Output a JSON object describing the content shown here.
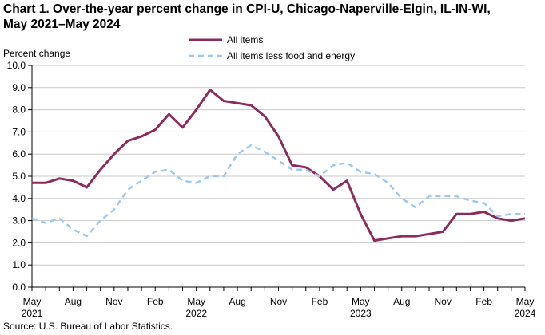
{
  "chart_data": {
    "type": "line",
    "title_line1": "Chart 1. Over-the-year percent change in CPI-U, Chicago-Naperville-Elgin,  IL-IN-WI,",
    "title_line2": "May 2021–May 2024",
    "ylabel": "Percent change",
    "ylim": [
      0,
      10
    ],
    "yticks": [
      "0.0",
      "1.0",
      "2.0",
      "3.0",
      "4.0",
      "5.0",
      "6.0",
      "7.0",
      "8.0",
      "9.0",
      "10.0"
    ],
    "x_ticks": [
      {
        "label": "May",
        "sub": "2021"
      },
      {
        "label": "Aug",
        "sub": ""
      },
      {
        "label": "Nov",
        "sub": ""
      },
      {
        "label": "Feb",
        "sub": ""
      },
      {
        "label": "May",
        "sub": "2022"
      },
      {
        "label": "Aug",
        "sub": ""
      },
      {
        "label": "Nov",
        "sub": ""
      },
      {
        "label": "Feb",
        "sub": ""
      },
      {
        "label": "May",
        "sub": "2023"
      },
      {
        "label": "Aug",
        "sub": ""
      },
      {
        "label": "Nov",
        "sub": ""
      },
      {
        "label": "Feb",
        "sub": ""
      },
      {
        "label": "May",
        "sub": "2024"
      }
    ],
    "series": [
      {
        "name": "All items",
        "color": "#8b2b5e",
        "style": "solid",
        "values": [
          4.7,
          4.7,
          4.9,
          4.8,
          4.5,
          5.3,
          6.0,
          6.6,
          6.8,
          7.1,
          7.8,
          7.2,
          8.0,
          8.9,
          8.4,
          8.3,
          8.2,
          7.7,
          6.8,
          5.5,
          5.4,
          5.0,
          4.4,
          4.8,
          3.3,
          2.1,
          2.2,
          2.3,
          2.3,
          2.4,
          2.5,
          3.3,
          3.3,
          3.4,
          3.1,
          3.0,
          3.1
        ]
      },
      {
        "name": "All items less food and energy",
        "color": "#9ec9ee",
        "style": "dashed",
        "values": [
          3.1,
          2.9,
          3.1,
          2.6,
          2.3,
          3.0,
          3.5,
          4.4,
          4.8,
          5.2,
          5.3,
          4.8,
          4.7,
          5.0,
          5.0,
          6.0,
          6.4,
          6.1,
          5.7,
          5.3,
          5.3,
          5.0,
          5.5,
          5.6,
          5.2,
          5.1,
          4.7,
          4.0,
          3.6,
          4.1,
          4.1,
          4.1,
          3.9,
          3.8,
          3.2,
          3.3,
          3.3
        ]
      }
    ],
    "legend_position": "top-center"
  },
  "source": "Source: U.S. Bureau  of Labor Statistics."
}
